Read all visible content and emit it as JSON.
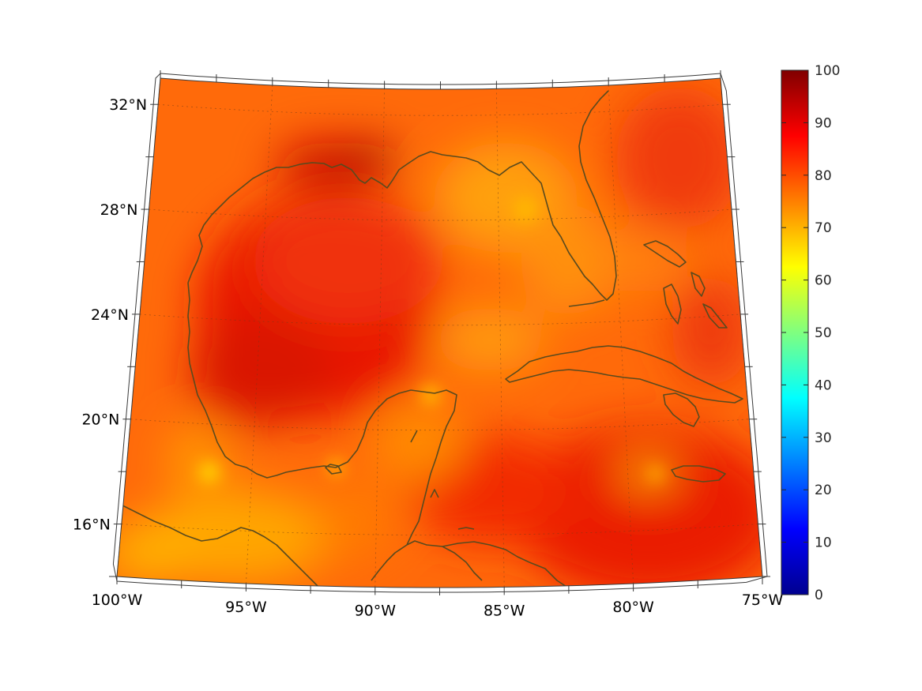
{
  "map": {
    "projection": "lambert-conformal-conic",
    "lon_range": [
      -100,
      -75
    ],
    "lat_range": [
      14,
      33
    ],
    "grid": true,
    "lat_ticks": [
      {
        "value": 32,
        "label": "32°N"
      },
      {
        "value": 28,
        "label": "28°N"
      },
      {
        "value": 24,
        "label": "24°N"
      },
      {
        "value": 20,
        "label": "20°N"
      },
      {
        "value": 16,
        "label": "16°N"
      }
    ],
    "lon_ticks": [
      {
        "value": -100,
        "label": "100°W"
      },
      {
        "value": -95,
        "label": "95°W"
      },
      {
        "value": -90,
        "label": "90°W"
      },
      {
        "value": -85,
        "label": "85°W"
      },
      {
        "value": -80,
        "label": "80°W"
      },
      {
        "value": -75,
        "label": "75°W"
      }
    ],
    "field": {
      "colormap": "jet",
      "dominant_range": [
        70,
        90
      ],
      "regions_high": [
        "central Gulf of Mexico",
        "Louisiana coast",
        "Caribbean south of Cuba"
      ],
      "regions_low": [
        "southern Mexico",
        "Florida peninsula",
        "Yucatan coast"
      ]
    },
    "coastline_color": "#5a4a1e"
  },
  "colorbar": {
    "colormap": "jet",
    "min": 0,
    "max": 100,
    "ticks": [
      "0",
      "10",
      "20",
      "30",
      "40",
      "50",
      "60",
      "70",
      "80",
      "90",
      "100"
    ],
    "position": "right"
  }
}
